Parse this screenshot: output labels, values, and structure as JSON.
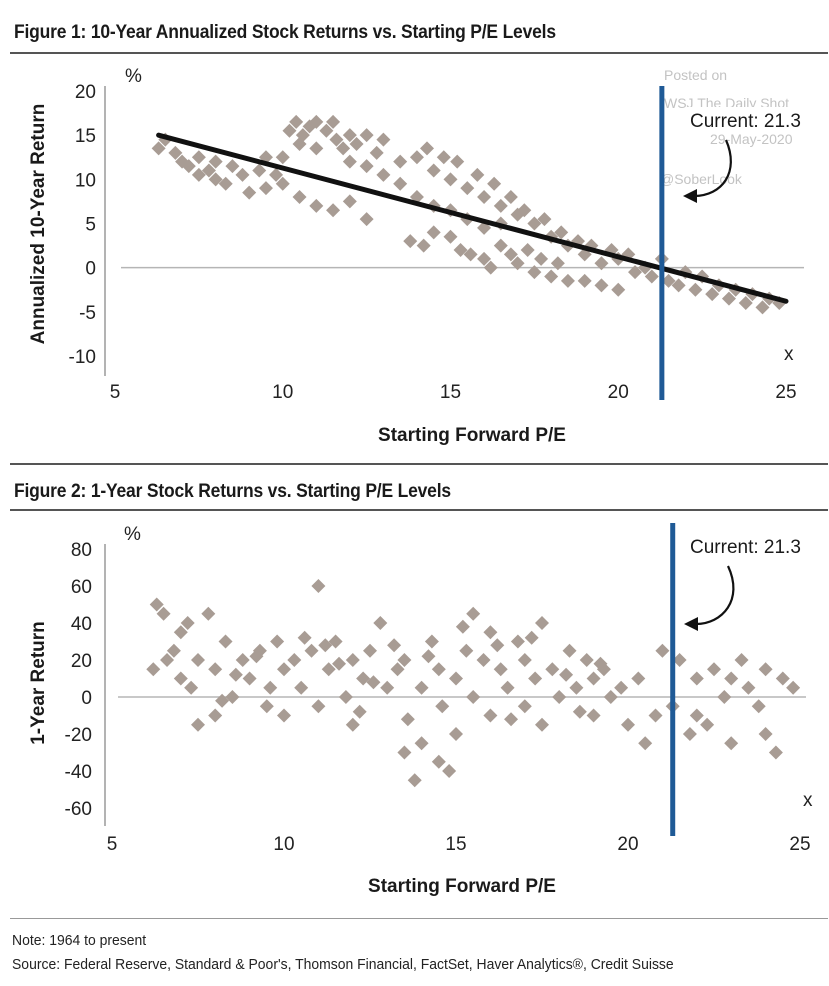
{
  "chart_data": [
    {
      "type": "scatter",
      "title": "Figure 1: 10-Year Annualized Stock Returns vs. Starting P/E Levels",
      "xlabel": "Starting Forward P/E",
      "ylabel": "Annualized 10-Year Return",
      "x_unit": "x",
      "y_unit": "%",
      "xlim": [
        5,
        25
      ],
      "ylim": [
        -10,
        20
      ],
      "xticks": [
        "5",
        "10",
        "15",
        "20",
        "25"
      ],
      "yticks": [
        "20",
        "15",
        "10",
        "5",
        "0",
        "-5",
        "-10"
      ],
      "current_pe": 21.3,
      "current_label": "Current: 21.3",
      "trendline": {
        "x": [
          6.3,
          25
        ],
        "y": [
          15,
          -3.8
        ]
      },
      "colors": {
        "points": "#a89c94",
        "trendline": "#111111",
        "current_line": "#1f5a96",
        "zero_line": "#b5b5b5"
      },
      "watermark": [
        "Posted on",
        "WSJ The Daily Shot",
        "29-May-2020",
        "@SoberLook"
      ],
      "series": [
        {
          "points": [
            [
              6.3,
              13.5
            ],
            [
              6.5,
              14.5
            ],
            [
              6.8,
              13
            ],
            [
              7.0,
              12
            ],
            [
              7.2,
              11.5
            ],
            [
              7.5,
              12.5
            ],
            [
              7.5,
              10.5
            ],
            [
              7.8,
              11
            ],
            [
              8.0,
              10
            ],
            [
              8.0,
              12
            ],
            [
              8.3,
              9.5
            ],
            [
              8.5,
              11.5
            ],
            [
              8.8,
              10.5
            ],
            [
              9.0,
              8.5
            ],
            [
              9.3,
              11
            ],
            [
              9.5,
              12.5
            ],
            [
              9.5,
              9
            ],
            [
              9.8,
              10.5
            ],
            [
              10.0,
              12.5
            ],
            [
              10.0,
              9.5
            ],
            [
              10.2,
              15.5
            ],
            [
              10.4,
              16.5
            ],
            [
              10.5,
              14
            ],
            [
              10.6,
              15
            ],
            [
              10.8,
              16
            ],
            [
              11.0,
              16.5
            ],
            [
              11.0,
              13.5
            ],
            [
              11.3,
              15.5
            ],
            [
              11.5,
              16.5
            ],
            [
              11.6,
              14.5
            ],
            [
              11.8,
              13.5
            ],
            [
              12.0,
              15
            ],
            [
              12.0,
              12
            ],
            [
              12.2,
              14
            ],
            [
              12.5,
              11.5
            ],
            [
              12.5,
              15
            ],
            [
              12.8,
              13
            ],
            [
              13.0,
              14.5
            ],
            [
              13.0,
              10.5
            ],
            [
              11.5,
              6.5
            ],
            [
              12.0,
              7.5
            ],
            [
              12.5,
              5.5
            ],
            [
              10.5,
              8
            ],
            [
              11.0,
              7
            ],
            [
              13.5,
              12
            ],
            [
              13.5,
              9.5
            ],
            [
              14.0,
              12.5
            ],
            [
              14.0,
              8
            ],
            [
              14.3,
              13.5
            ],
            [
              14.5,
              11
            ],
            [
              14.5,
              7
            ],
            [
              14.8,
              12.5
            ],
            [
              15.0,
              10
            ],
            [
              15.0,
              6.5
            ],
            [
              15.2,
              12
            ],
            [
              15.5,
              9
            ],
            [
              15.5,
              5.5
            ],
            [
              15.8,
              10.5
            ],
            [
              16.0,
              8
            ],
            [
              16.0,
              4.5
            ],
            [
              16.3,
              9.5
            ],
            [
              16.5,
              7
            ],
            [
              16.5,
              5
            ],
            [
              16.8,
              8
            ],
            [
              17.0,
              6
            ],
            [
              13.8,
              3
            ],
            [
              14.2,
              2.5
            ],
            [
              14.5,
              4
            ],
            [
              15.0,
              3.5
            ],
            [
              15.3,
              2
            ],
            [
              15.6,
              1.5
            ],
            [
              16.0,
              1
            ],
            [
              16.2,
              0
            ],
            [
              16.5,
              2.5
            ],
            [
              16.8,
              1.5
            ],
            [
              17.0,
              0.5
            ],
            [
              17.3,
              2
            ],
            [
              17.5,
              -0.5
            ],
            [
              17.7,
              1
            ],
            [
              18.0,
              -1
            ],
            [
              18.2,
              0.5
            ],
            [
              18.5,
              -1.5
            ],
            [
              17.2,
              6.5
            ],
            [
              17.5,
              5
            ],
            [
              17.8,
              5.5
            ],
            [
              18.0,
              3.5
            ],
            [
              18.3,
              4
            ],
            [
              18.5,
              2.5
            ],
            [
              18.8,
              3
            ],
            [
              19.0,
              1.5
            ],
            [
              19.2,
              2.5
            ],
            [
              19.5,
              0.5
            ],
            [
              19.8,
              2
            ],
            [
              20.0,
              1
            ],
            [
              20.3,
              1.5
            ],
            [
              20.5,
              -0.5
            ],
            [
              20.8,
              0
            ],
            [
              21.0,
              -1
            ],
            [
              21.3,
              1
            ],
            [
              21.5,
              -1.5
            ],
            [
              21.8,
              -2
            ],
            [
              22.0,
              -0.5
            ],
            [
              22.3,
              -2.5
            ],
            [
              22.5,
              -1
            ],
            [
              22.8,
              -3
            ],
            [
              23.0,
              -2
            ],
            [
              23.3,
              -3.5
            ],
            [
              23.5,
              -2.5
            ],
            [
              23.8,
              -4
            ],
            [
              24.0,
              -3
            ],
            [
              24.3,
              -4.5
            ],
            [
              24.5,
              -3.5
            ],
            [
              24.8,
              -4
            ],
            [
              19.0,
              -1.5
            ],
            [
              19.5,
              -2
            ],
            [
              20.0,
              -2.5
            ]
          ]
        }
      ]
    },
    {
      "type": "scatter",
      "title": "Figure 2: 1-Year Stock Returns vs. Starting P/E Levels",
      "xlabel": "Starting Forward P/E",
      "ylabel": "1-Year Return",
      "x_unit": "x",
      "y_unit": "%",
      "xlim": [
        5,
        25
      ],
      "ylim": [
        -60,
        80
      ],
      "xticks": [
        "5",
        "10",
        "15",
        "20",
        "25"
      ],
      "yticks": [
        "80",
        "60",
        "40",
        "20",
        "0",
        "-20",
        "-40",
        "-60"
      ],
      "current_pe": 21.3,
      "current_label": "Current: 21.3",
      "colors": {
        "points": "#a89c94",
        "current_line": "#1f5a96",
        "zero_line": "#b5b5b5"
      },
      "series": [
        {
          "points": [
            [
              6.3,
              50
            ],
            [
              6.5,
              45
            ],
            [
              6.2,
              15
            ],
            [
              6.8,
              25
            ],
            [
              7.0,
              10
            ],
            [
              7.0,
              35
            ],
            [
              7.3,
              5
            ],
            [
              7.5,
              20
            ],
            [
              7.5,
              -15
            ],
            [
              7.8,
              45
            ],
            [
              8.0,
              15
            ],
            [
              8.0,
              -10
            ],
            [
              8.3,
              30
            ],
            [
              8.5,
              0
            ],
            [
              8.8,
              20
            ],
            [
              9.0,
              10
            ],
            [
              9.3,
              25
            ],
            [
              9.5,
              -5
            ],
            [
              9.8,
              30
            ],
            [
              10.0,
              15
            ],
            [
              10.0,
              -10
            ],
            [
              10.3,
              20
            ],
            [
              10.5,
              5
            ],
            [
              10.8,
              25
            ],
            [
              11.0,
              60
            ],
            [
              11.0,
              -5
            ],
            [
              11.3,
              15
            ],
            [
              11.5,
              30
            ],
            [
              11.8,
              0
            ],
            [
              12.0,
              20
            ],
            [
              12.0,
              -15
            ],
            [
              12.3,
              10
            ],
            [
              12.5,
              25
            ],
            [
              12.8,
              40
            ],
            [
              13.0,
              5
            ],
            [
              13.3,
              15
            ],
            [
              13.5,
              -30
            ],
            [
              13.5,
              20
            ],
            [
              13.8,
              -45
            ],
            [
              14.0,
              5
            ],
            [
              14.0,
              -25
            ],
            [
              14.3,
              30
            ],
            [
              14.5,
              -35
            ],
            [
              14.5,
              15
            ],
            [
              14.8,
              -40
            ],
            [
              15.0,
              10
            ],
            [
              15.0,
              -20
            ],
            [
              15.3,
              25
            ],
            [
              15.5,
              45
            ],
            [
              15.5,
              0
            ],
            [
              15.8,
              20
            ],
            [
              16.0,
              -10
            ],
            [
              16.0,
              35
            ],
            [
              16.3,
              15
            ],
            [
              16.5,
              5
            ],
            [
              16.8,
              30
            ],
            [
              17.0,
              -5
            ],
            [
              17.0,
              20
            ],
            [
              17.3,
              10
            ],
            [
              17.5,
              40
            ],
            [
              17.5,
              -15
            ],
            [
              17.8,
              15
            ],
            [
              18.0,
              0
            ],
            [
              18.3,
              25
            ],
            [
              18.5,
              5
            ],
            [
              18.8,
              20
            ],
            [
              19.0,
              -10
            ],
            [
              19.0,
              10
            ],
            [
              19.3,
              15
            ],
            [
              19.5,
              0
            ],
            [
              19.8,
              5
            ],
            [
              20.0,
              -15
            ],
            [
              20.3,
              10
            ],
            [
              20.5,
              -25
            ],
            [
              20.8,
              -10
            ],
            [
              21.0,
              25
            ],
            [
              21.3,
              -5
            ],
            [
              21.5,
              20
            ],
            [
              21.8,
              -20
            ],
            [
              22.0,
              10
            ],
            [
              22.3,
              -15
            ],
            [
              22.5,
              15
            ],
            [
              22.8,
              0
            ],
            [
              23.0,
              -25
            ],
            [
              23.3,
              20
            ],
            [
              23.5,
              5
            ],
            [
              23.8,
              -5
            ],
            [
              24.0,
              15
            ],
            [
              24.3,
              -30
            ],
            [
              24.5,
              10
            ],
            [
              24.8,
              5
            ],
            [
              24.0,
              -20
            ],
            [
              23.0,
              10
            ],
            [
              22.0,
              -10
            ],
            [
              6.6,
              20
            ],
            [
              7.2,
              40
            ],
            [
              8.6,
              12
            ],
            [
              9.2,
              22
            ],
            [
              10.6,
              32
            ],
            [
              11.6,
              18
            ],
            [
              12.6,
              8
            ],
            [
              13.2,
              28
            ],
            [
              14.2,
              22
            ],
            [
              15.2,
              38
            ],
            [
              16.2,
              28
            ],
            [
              17.2,
              32
            ],
            [
              18.2,
              12
            ],
            [
              19.2,
              18
            ],
            [
              12.2,
              -8
            ],
            [
              13.6,
              -12
            ],
            [
              14.6,
              -5
            ],
            [
              11.2,
              28
            ],
            [
              9.6,
              5
            ],
            [
              8.2,
              -2
            ],
            [
              16.6,
              -12
            ],
            [
              18.6,
              -8
            ]
          ]
        }
      ]
    }
  ],
  "footer": {
    "note": "Note: 1964 to present",
    "source": "Source: Federal Reserve, Standard & Poor's, Thomson Financial, FactSet, Haver Analytics®, Credit Suisse"
  }
}
